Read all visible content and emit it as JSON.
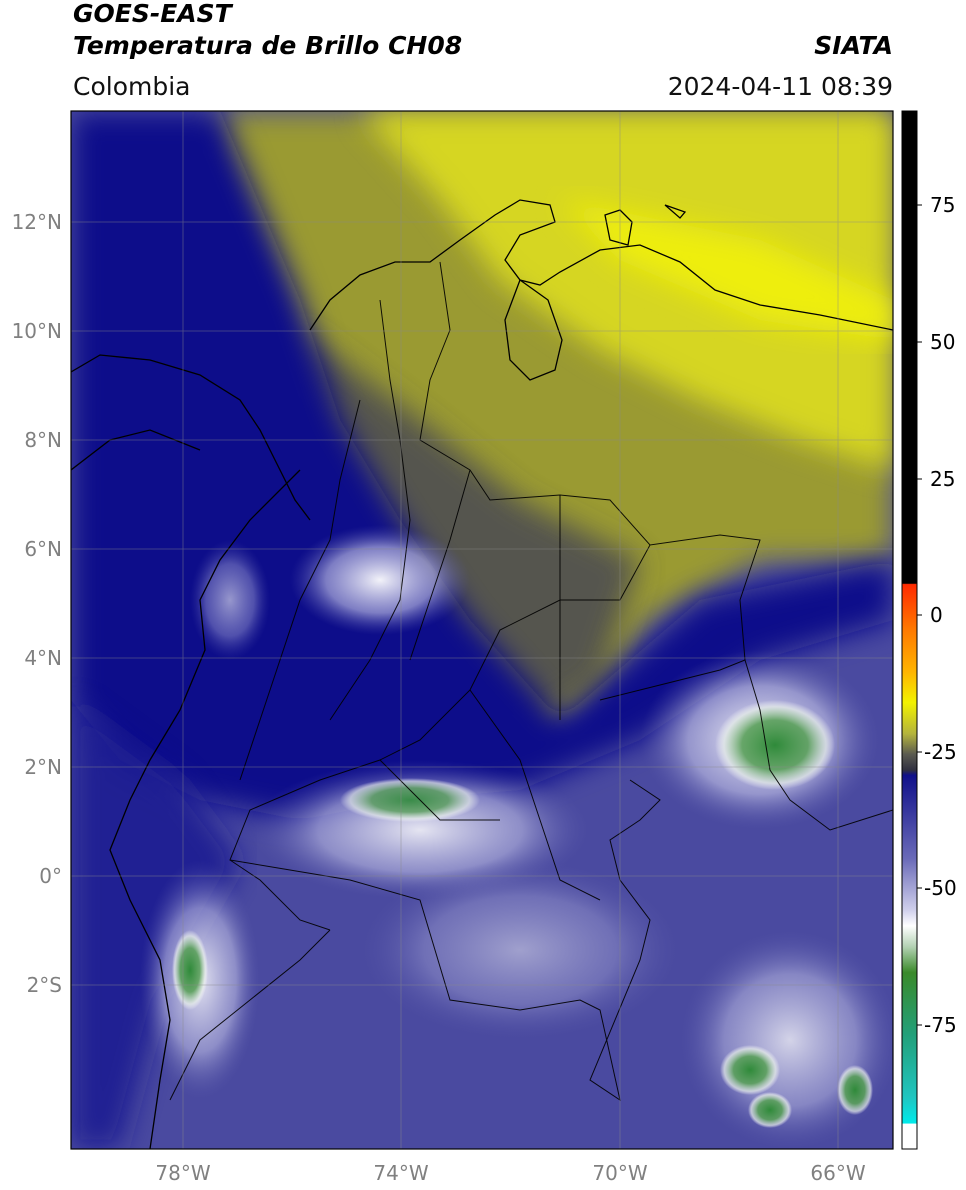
{
  "header": {
    "satellite": "GOES-EAST",
    "product": "Temperatura de Brillo CH08",
    "region": "Colombia",
    "agency": "SIATA",
    "datetime": "2024-04-11 08:39"
  },
  "map": {
    "extent_lon": [
      -80,
      -65
    ],
    "extent_lat": [
      -5.2,
      14
    ],
    "lat_ticks": [
      {
        "value": 12,
        "label": "12°N"
      },
      {
        "value": 10,
        "label": "10°N"
      },
      {
        "value": 8,
        "label": "8°N"
      },
      {
        "value": 6,
        "label": "6°N"
      },
      {
        "value": 4,
        "label": "4°N"
      },
      {
        "value": 2,
        "label": "2°N"
      },
      {
        "value": 0,
        "label": "0°"
      },
      {
        "value": -2,
        "label": "2°S"
      }
    ],
    "lon_ticks": [
      {
        "value": -78,
        "label": "78°W"
      },
      {
        "value": -74,
        "label": "74°W"
      },
      {
        "value": -70,
        "label": "70°W"
      },
      {
        "value": -66,
        "label": "66°W"
      }
    ]
  },
  "colorbar": {
    "range": [
      -95,
      90
    ],
    "ticks": [
      {
        "value": 75,
        "label": "75"
      },
      {
        "value": 50,
        "label": "50"
      },
      {
        "value": 25,
        "label": "25"
      },
      {
        "value": 0,
        "label": "0"
      },
      {
        "value": -25,
        "label": "-25"
      },
      {
        "value": -50,
        "label": "-50"
      },
      {
        "value": -75,
        "label": "-75"
      }
    ],
    "colors": {
      "black": "#000000",
      "red": "#ff2a00",
      "orange": "#ff9900",
      "yellow": "#f2f200",
      "olive": "#6e6e2e",
      "dark_gray": "#3a3a48",
      "navy": "#10108a",
      "light": "#ffffff",
      "green": "#3a8a3a",
      "teal": "#22b5a5",
      "cyan": "#00eaea"
    }
  }
}
